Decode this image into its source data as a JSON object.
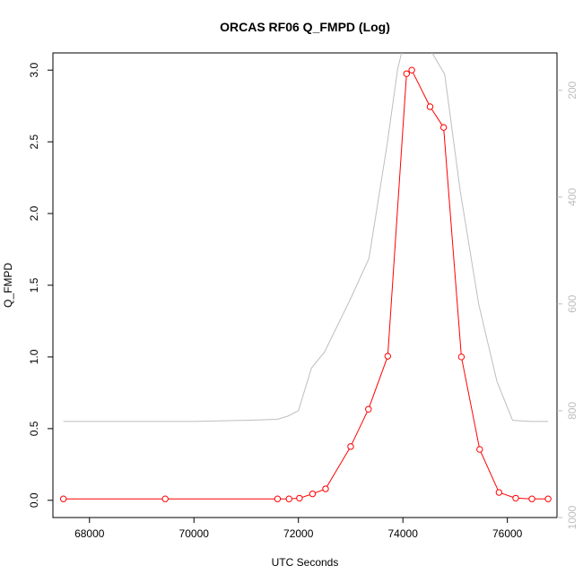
{
  "chart_data": {
    "type": "line",
    "title": "ORCAS RF06 Q_FMPD (Log)",
    "xlabel": "UTC Seconds",
    "ylabel": "Q_FMPD",
    "xlim": [
      67300,
      76950
    ],
    "ylim": [
      -0.12,
      3.12
    ],
    "x_ticks": [
      "68000",
      "70000",
      "72000",
      "74000",
      "76000"
    ],
    "y_ticks": [
      "0.0",
      "0.5",
      "1.0",
      "1.5",
      "2.0",
      "2.5",
      "3.0"
    ],
    "y2_ticks": [
      "200",
      "400",
      "600",
      "800",
      "1000"
    ],
    "y2lim": [
      130,
      1000
    ],
    "y2_reversed": true,
    "grid": false,
    "series": [
      {
        "color": "#ff0000",
        "marker": "open-circle",
        "x": [
          67500,
          69450,
          71600,
          71820,
          72020,
          72270,
          72520,
          73000,
          73340,
          73710,
          74070,
          74170,
          74520,
          74780,
          75120,
          75470,
          75840,
          76160,
          76470,
          76780
        ],
        "y": [
          0.01,
          0.01,
          0.01,
          0.01,
          0.015,
          0.045,
          0.08,
          0.375,
          0.635,
          1.005,
          2.975,
          3.0,
          2.745,
          2.6,
          1.0,
          0.355,
          0.055,
          0.015,
          0.01,
          0.01
        ]
      },
      {
        "color": "#bebebe",
        "axis": "right",
        "x": [
          67500,
          69000,
          70000,
          71000,
          71600,
          71800,
          72000,
          72250,
          72500,
          73000,
          73350,
          73700,
          73900,
          74000,
          74500,
          74800,
          75100,
          75450,
          75800,
          76100,
          76450,
          76780
        ],
        "y2": [
          820,
          820,
          820,
          818,
          816,
          810,
          800,
          720,
          690,
          590,
          515,
          300,
          160,
          120,
          120,
          170,
          390,
          600,
          745,
          818,
          820,
          820
        ]
      }
    ]
  }
}
